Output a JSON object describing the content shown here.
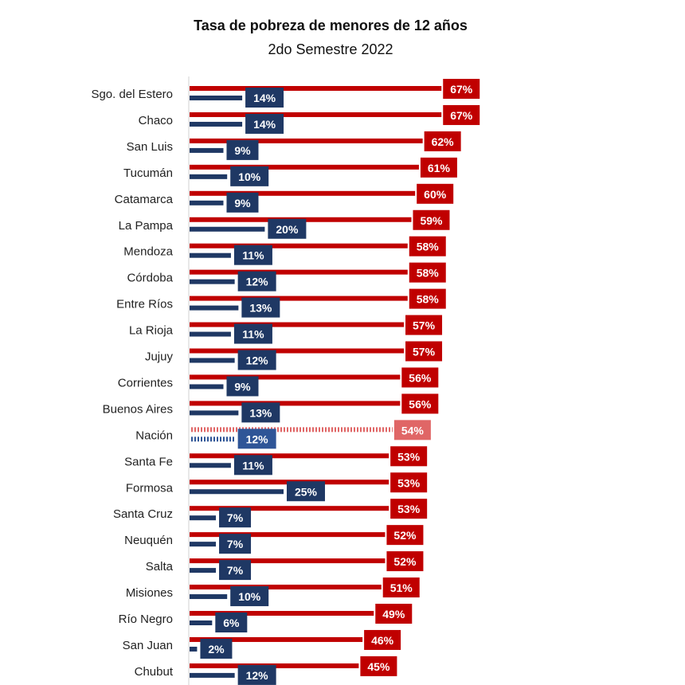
{
  "chart_data": {
    "type": "bar",
    "orientation": "horizontal",
    "title": "Tasa de pobreza de menores de 12 años",
    "subtitle": "2do Semestre 2022",
    "categories": [
      "Sgo. del Estero",
      "Chaco",
      "San Luis",
      "Tucumán",
      "Catamarca",
      "La Pampa",
      "Mendoza",
      "Córdoba",
      "Entre Ríos",
      "La Rioja",
      "Jujuy",
      "Corrientes",
      "Buenos Aires",
      "Nación",
      "Santa Fe",
      "Formosa",
      "Santa Cruz",
      "Neuquén",
      "Salta",
      "Misiones",
      "Río Negro",
      "San Juan",
      "Chubut"
    ],
    "series": [
      {
        "values": [
          67,
          67,
          62,
          61,
          60,
          59,
          58,
          58,
          58,
          57,
          57,
          56,
          56,
          54,
          53,
          53,
          53,
          52,
          52,
          51,
          49,
          46,
          45
        ],
        "color": "#c00000"
      },
      {
        "values": [
          14,
          14,
          9,
          10,
          9,
          20,
          11,
          12,
          13,
          11,
          12,
          9,
          13,
          12,
          11,
          25,
          7,
          7,
          7,
          10,
          6,
          2,
          12
        ],
        "color": "#1f3864"
      }
    ],
    "highlight": {
      "category": "Nación",
      "style": "dotted",
      "colors": [
        "#e06666",
        "#2f5597"
      ]
    },
    "value_suffix": "%",
    "xlim": [
      0,
      70
    ],
    "grid": false,
    "legend": "none"
  }
}
